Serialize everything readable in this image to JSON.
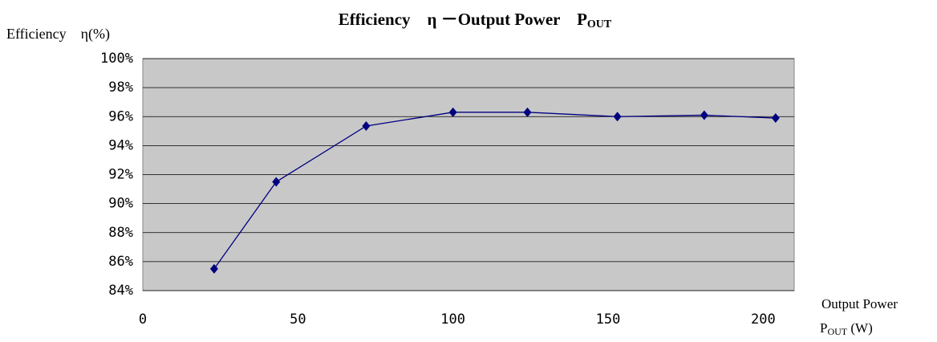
{
  "chart_data": {
    "type": "line",
    "title": "Efficiency　η －Output Power　P",
    "title_sub": "OUT",
    "y_label": "Efficiency　η(%)",
    "x_label": "Output Power",
    "x_label_main": "P",
    "x_label_sub": "OUT",
    "x_label_unit": " (W)",
    "x": [
      23,
      43,
      72,
      100,
      124,
      153,
      181,
      204
    ],
    "series": [
      {
        "color": "#000080",
        "values": [
          85.5,
          91.5,
          95.35,
          96.3,
          96.3,
          96.0,
          96.1,
          95.9
        ]
      }
    ],
    "xlim": [
      0,
      210
    ],
    "xticks": [
      0,
      50,
      100,
      150,
      200
    ],
    "ylim": [
      84,
      100
    ],
    "yticks": [
      {
        "value": 84,
        "label": "84%"
      },
      {
        "value": 86,
        "label": "86%"
      },
      {
        "value": 88,
        "label": "88%"
      },
      {
        "value": 90,
        "label": "90%"
      },
      {
        "value": 92,
        "label": "92%"
      },
      {
        "value": 94,
        "label": "94%"
      },
      {
        "value": 96,
        "label": "96%"
      },
      {
        "value": 98,
        "label": "98%"
      },
      {
        "value": 100,
        "label": "100%"
      }
    ],
    "grid": true,
    "plot_background": "#c8c8c8"
  }
}
